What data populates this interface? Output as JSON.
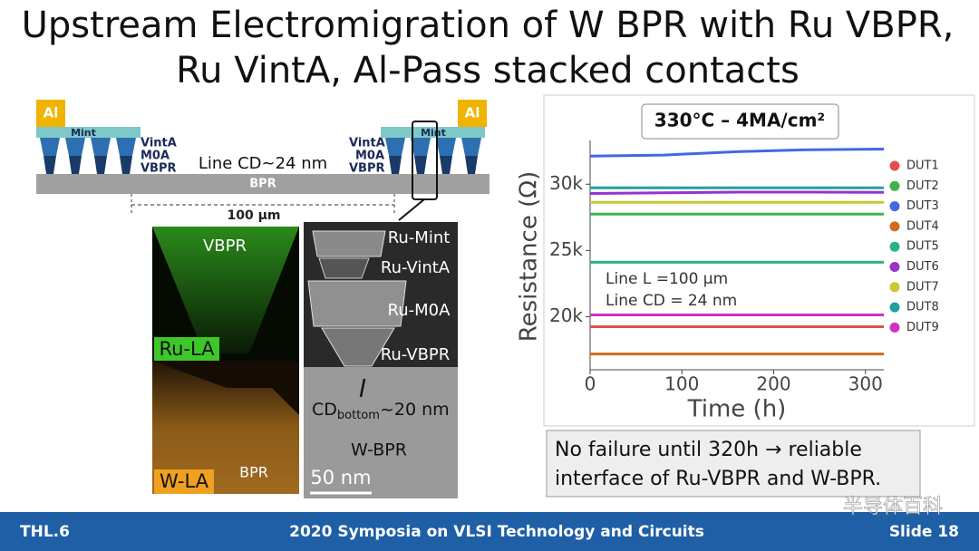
{
  "header": {
    "title_lines": [
      "Upstream Electromigration of W BPR with Ru VBPR,",
      "Ru VintA, Al-Pass stacked contacts"
    ]
  },
  "schematic": {
    "left_pad": "Al",
    "left_mint": "Mint",
    "left_via_labels": [
      "VintA",
      "M0A",
      "VBPR"
    ],
    "line_cd": "Line CD~24 nm",
    "bpr": "BPR",
    "length": "100 µm",
    "right_via_labels": [
      "VintA",
      "M0A",
      "VBPR"
    ],
    "right_mint": "Mint",
    "right_pad": "Al"
  },
  "eds_image": {
    "top_label": "VBPR",
    "top_tag": "Ru-LA",
    "bottom_label": "BPR",
    "bottom_tag": "W-LA"
  },
  "tem_image": {
    "labels": [
      "Ru-Mint",
      "Ru-VintA",
      "Ru-M0A",
      "Ru-VBPR"
    ],
    "cd_main": "CD",
    "cd_sub": "bottom",
    "cd_rest": "~20 nm",
    "bpr_label": "W-BPR",
    "scale": "50 nm"
  },
  "chart_data": {
    "type": "line",
    "title": "330°C – 4MA/cm²",
    "x_label": "Time (h)",
    "y_label": "Resistance (Ω)",
    "x": [
      0,
      80,
      160,
      240,
      320
    ],
    "xlim": [
      0,
      320
    ],
    "xticks": [
      0,
      100,
      200,
      300
    ],
    "ylim": [
      16000,
      33300
    ],
    "yticks": [
      {
        "value": 20000,
        "label": "20k"
      },
      {
        "value": 25000,
        "label": "25k"
      },
      {
        "value": 30000,
        "label": "30k"
      }
    ],
    "annotations": [
      "Line L =100 µm",
      "Line CD = 24 nm"
    ],
    "series": [
      {
        "name": "DUT1",
        "color": "#e05050",
        "values": [
          19250,
          19250,
          19250,
          19250,
          19250
        ]
      },
      {
        "name": "DUT2",
        "color": "#3cb44b",
        "values": [
          27740,
          27740,
          27740,
          27740,
          27740
        ]
      },
      {
        "name": "DUT3",
        "color": "#4169e1",
        "values": [
          32120,
          32200,
          32450,
          32600,
          32650
        ]
      },
      {
        "name": "DUT4",
        "color": "#d2691e",
        "values": [
          17190,
          17190,
          17190,
          17190,
          17190
        ]
      },
      {
        "name": "DUT5",
        "color": "#2ab08a",
        "values": [
          24110,
          24110,
          24110,
          24110,
          24110
        ]
      },
      {
        "name": "DUT6",
        "color": "#9932cc",
        "values": [
          29300,
          29350,
          29400,
          29400,
          29380
        ]
      },
      {
        "name": "DUT7",
        "color": "#c8c832",
        "values": [
          28630,
          28630,
          28630,
          28630,
          28630
        ]
      },
      {
        "name": "DUT8",
        "color": "#20a0a0",
        "values": [
          29730,
          29730,
          29730,
          29730,
          29730
        ]
      },
      {
        "name": "DUT9",
        "color": "#d030c0",
        "values": [
          20140,
          20140,
          20140,
          20140,
          20140
        ]
      }
    ]
  },
  "note": {
    "lines": [
      "No failure until 320h → reliable",
      "interface of Ru-VBPR and W-BPR."
    ]
  },
  "footer": {
    "left": "THL.6",
    "center": "2020 Symposia on VLSI Technology and Circuits",
    "right": "Slide 18",
    "watermark": "半导体百科"
  }
}
